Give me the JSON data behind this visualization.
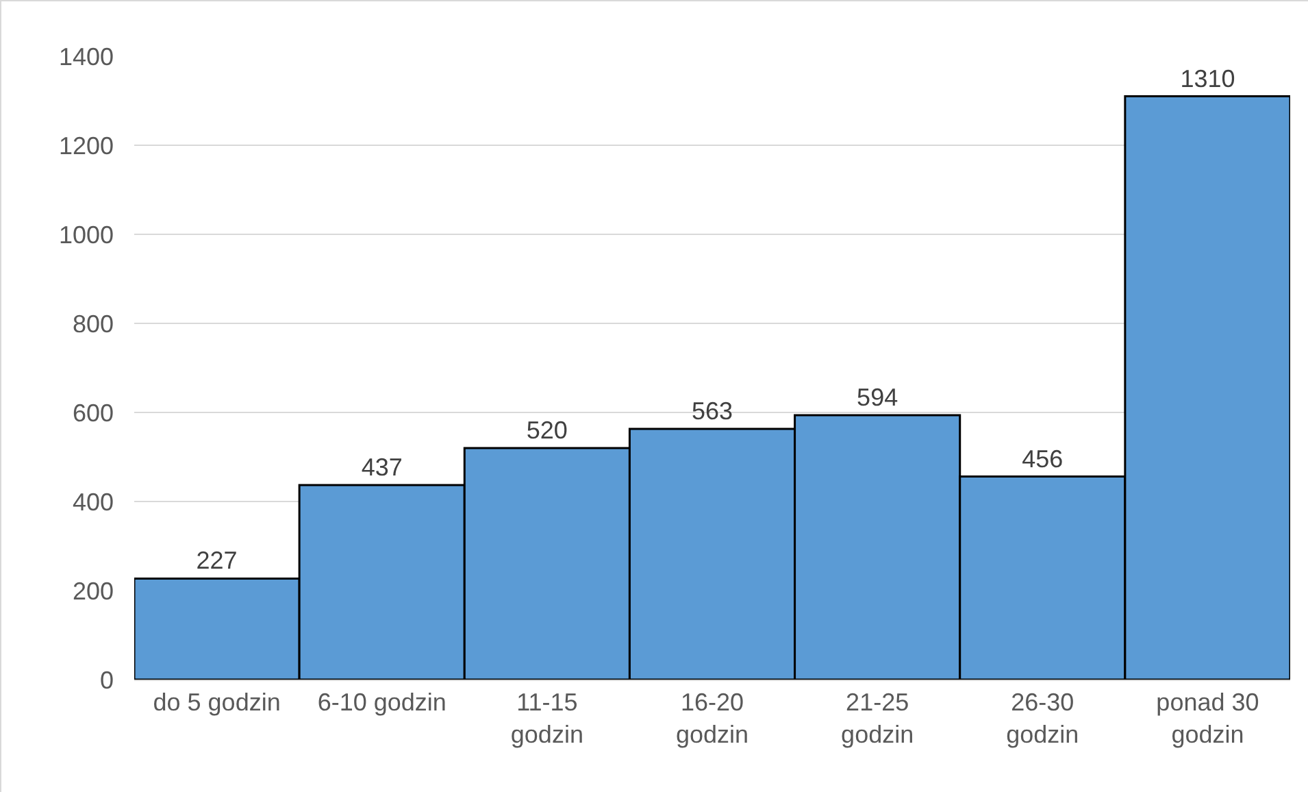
{
  "chart_data": {
    "type": "bar",
    "categories": [
      "do 5 godzin",
      "6-10 godzin",
      "11-15 godzin",
      "16-20 godzin",
      "21-25 godzin",
      "26-30 godzin",
      "ponad 30 godzin"
    ],
    "values": [
      227,
      437,
      520,
      563,
      594,
      456,
      1310
    ],
    "color": "#5b9bd5",
    "data_labels": true,
    "grid": "y",
    "ylim": [
      0,
      1400
    ],
    "yticks": [
      0,
      200,
      400,
      600,
      800,
      1000,
      1200,
      1400
    ]
  }
}
